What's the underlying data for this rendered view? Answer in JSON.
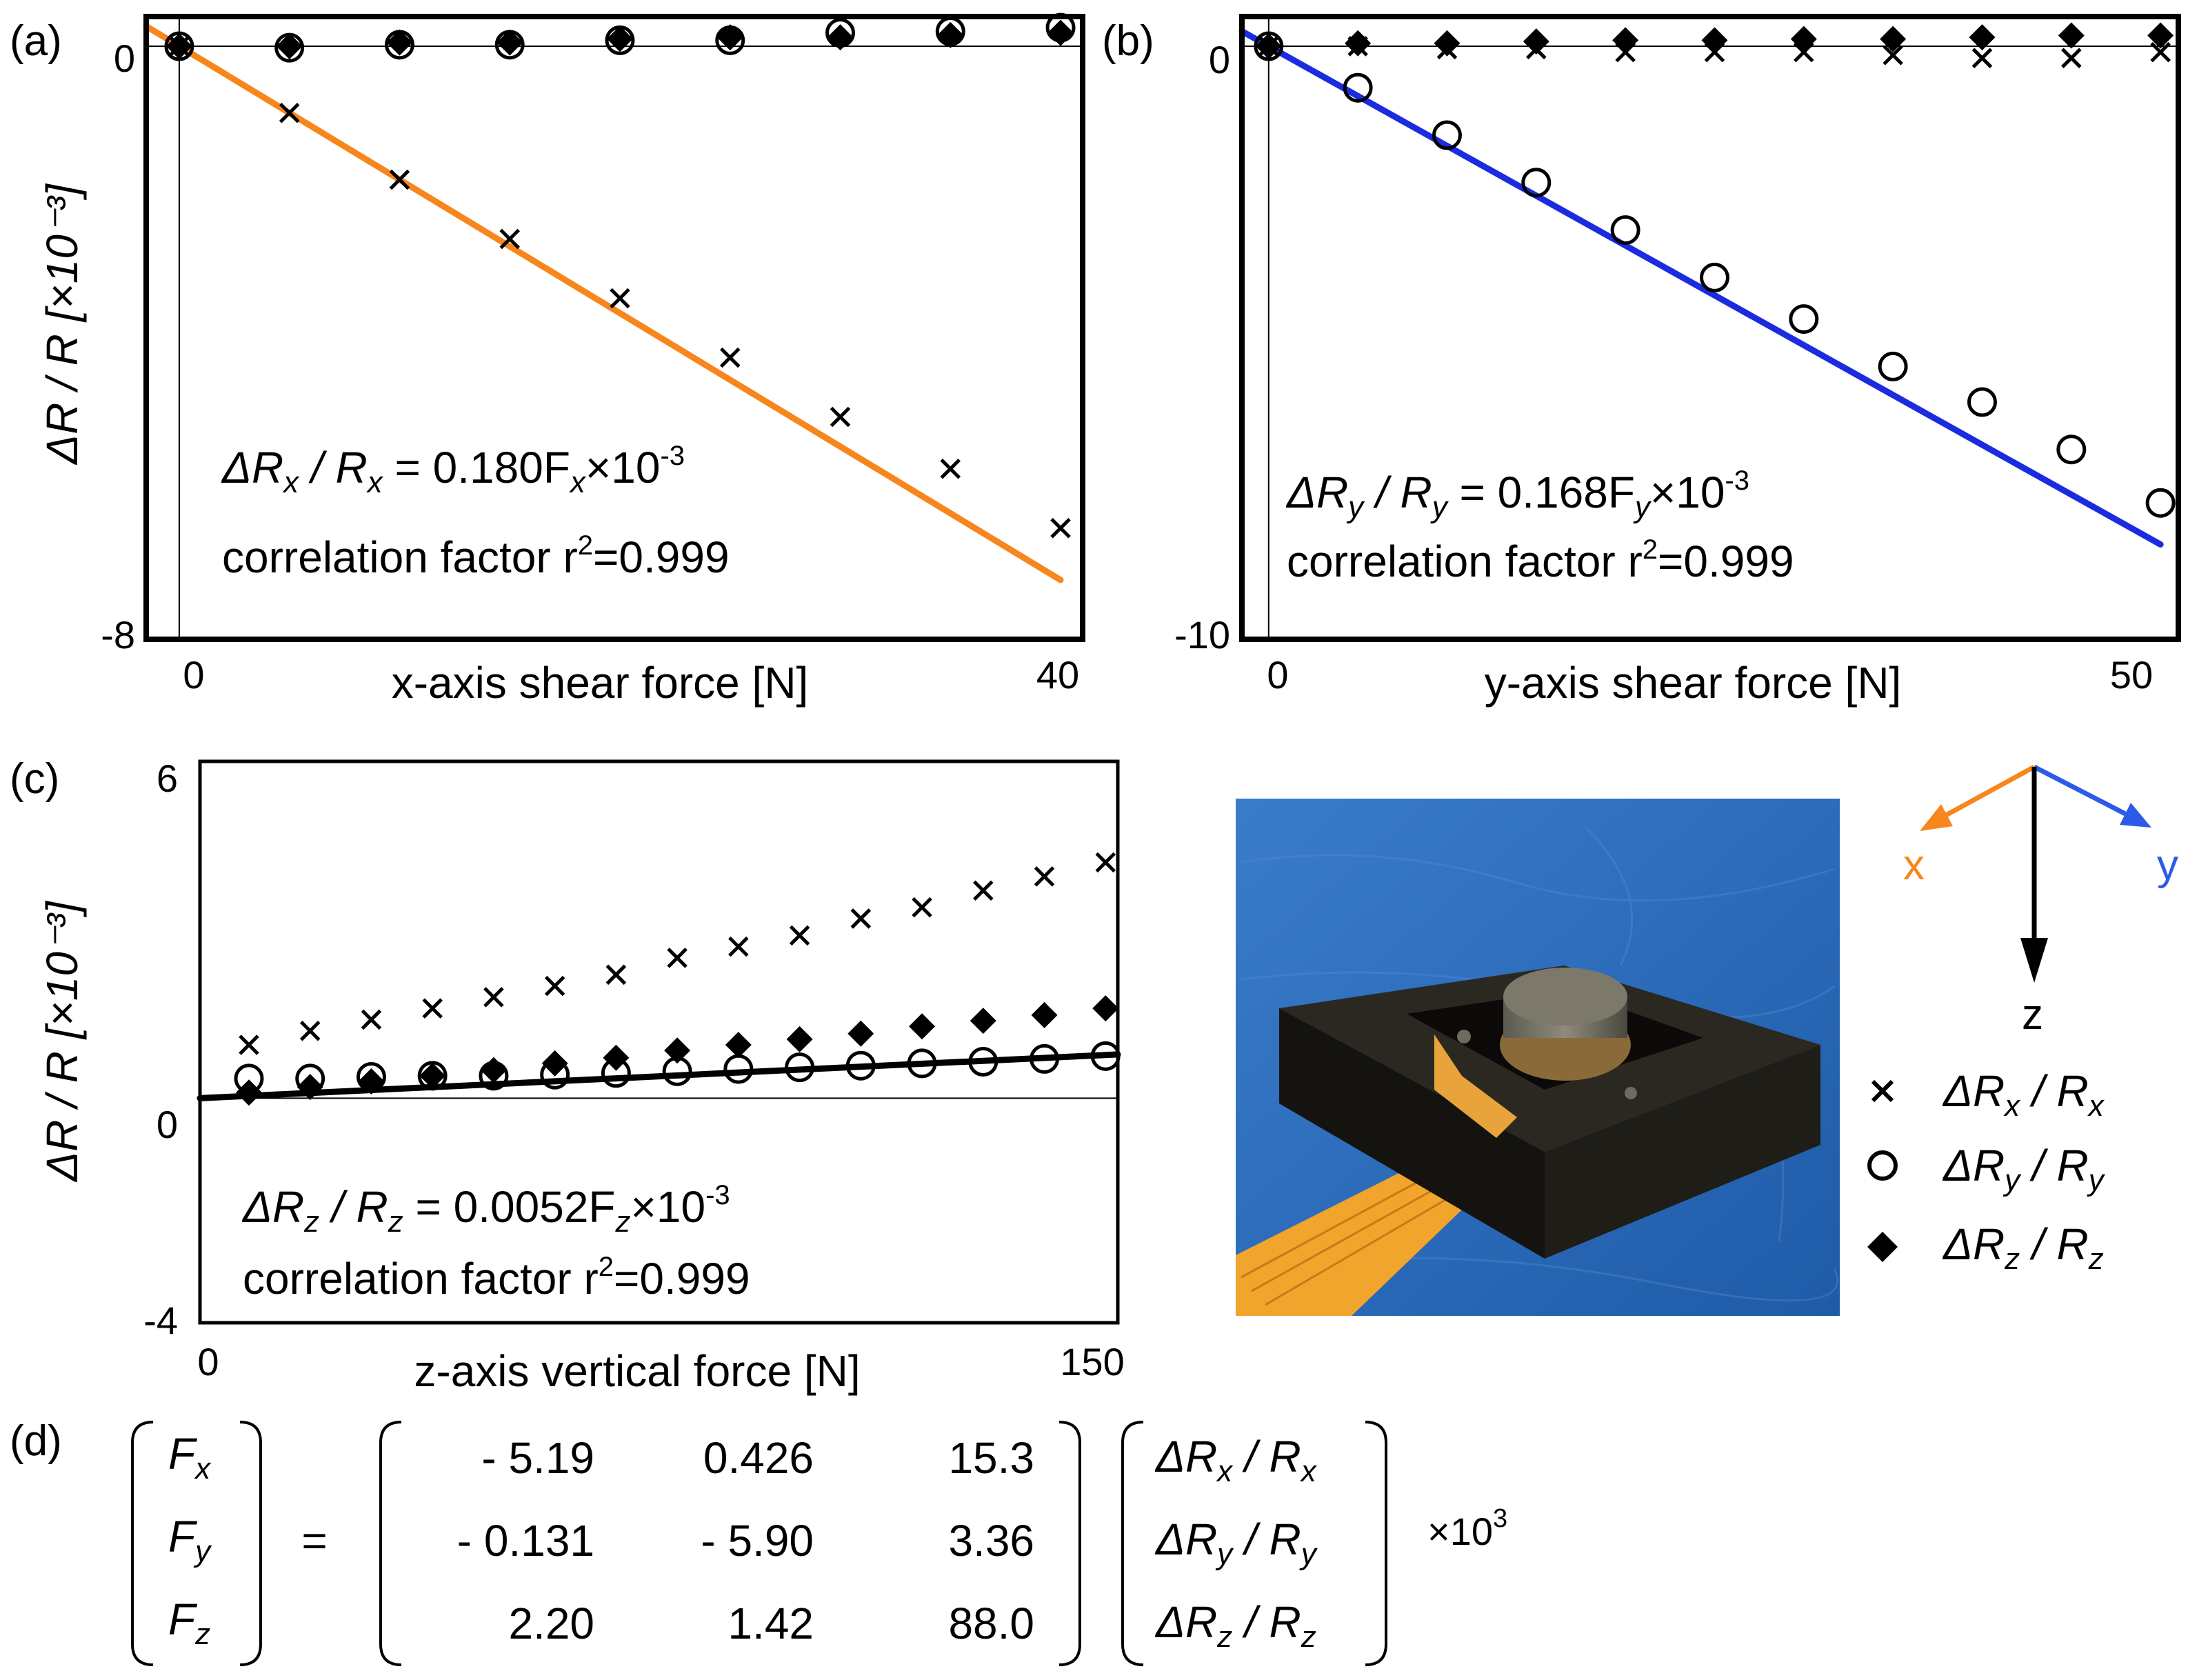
{
  "colors": {
    "fit_x": "#F7861C",
    "fit_y": "#1A2BE0",
    "fit_z": "#000000",
    "axis_x_arrow": "#F7861C",
    "axis_y_arrow": "#2D5BE8",
    "axis_z_arrow": "#000000",
    "photo_bg": "#2E6FC0",
    "sensor_body": "#1F1D18",
    "flex_cable": "#F2A52C",
    "pin": "#6E6A5E"
  },
  "panels": {
    "a_label": "(a)",
    "b_label": "(b)",
    "c_label": "(c)",
    "d_label": "(d)"
  },
  "chart_data": [
    {
      "id": "a",
      "type": "scatter",
      "xlabel": "x-axis shear force [N]",
      "ylabel": "ΔR / R [×10⁻³]",
      "xlim": [
        -1.5,
        41
      ],
      "ylim": [
        -8,
        0.4
      ],
      "xticks": [
        "0",
        "40"
      ],
      "yticks": [
        "0",
        "-8"
      ],
      "fit_line": {
        "slope": -0.18,
        "intercept": 0,
        "x_range": [
          -1.5,
          40
        ],
        "color_key": "fit_x"
      },
      "equation": {
        "lhs_a": "ΔR",
        "lhs_a_sub": "x",
        "lhs_b": " / R",
        "lhs_b_sub": "x",
        "rhs": " = 0.180F",
        "rhs_sub": "x",
        "rhs_tail": "×10",
        "rhs_sup": "-3"
      },
      "correlation": {
        "text": "correlation factor r",
        "sup": "2",
        "tail": "=0.999"
      },
      "series": [
        {
          "name": "ΔRx/Rx",
          "marker": "x",
          "x": [
            0,
            5,
            10,
            15,
            20,
            25,
            30,
            35,
            40
          ],
          "values": [
            0,
            -0.9,
            -1.8,
            -2.6,
            -3.4,
            -4.2,
            -5.0,
            -5.7,
            -6.5
          ]
        },
        {
          "name": "ΔRy/Ry",
          "marker": "o",
          "x": [
            0,
            5,
            10,
            15,
            20,
            25,
            30,
            35,
            40
          ],
          "values": [
            0,
            -0.02,
            0.02,
            0.02,
            0.08,
            0.08,
            0.18,
            0.2,
            0.25
          ]
        },
        {
          "name": "ΔRz/Rz",
          "marker": "diamond",
          "x": [
            0,
            5,
            10,
            15,
            20,
            25,
            30,
            35,
            40
          ],
          "values": [
            0,
            0,
            0.05,
            0.05,
            0.1,
            0.12,
            0.12,
            0.15,
            0.18
          ]
        }
      ]
    },
    {
      "id": "b",
      "type": "scatter",
      "xlabel": "y-axis shear force [N]",
      "ylabel": "",
      "xlim": [
        -1.5,
        51
      ],
      "ylim": [
        -10,
        0.5
      ],
      "xticks": [
        "0",
        "50"
      ],
      "yticks": [
        "0",
        "-10"
      ],
      "fit_line": {
        "slope": -0.168,
        "intercept": 0,
        "x_range": [
          -1.5,
          50
        ],
        "color_key": "fit_y"
      },
      "equation": {
        "lhs_a": "ΔR",
        "lhs_a_sub": "y",
        "lhs_b": " / R",
        "lhs_b_sub": "y",
        "rhs": " = 0.168F",
        "rhs_sub": "y",
        "rhs_tail": "×10",
        "rhs_sup": "-3"
      },
      "correlation": {
        "text": "correlation factor r",
        "sup": "2",
        "tail": "=0.999"
      },
      "series": [
        {
          "name": "ΔRx/Rx",
          "marker": "x",
          "x": [
            0,
            5,
            10,
            15,
            20,
            25,
            30,
            35,
            40,
            45,
            50
          ],
          "values": [
            0,
            0,
            -0.05,
            -0.05,
            -0.1,
            -0.1,
            -0.1,
            -0.15,
            -0.2,
            -0.2,
            -0.1
          ]
        },
        {
          "name": "ΔRy/Ry",
          "marker": "o",
          "x": [
            0,
            5,
            10,
            15,
            20,
            25,
            30,
            35,
            40,
            45,
            50
          ],
          "values": [
            0,
            -0.7,
            -1.5,
            -2.3,
            -3.1,
            -3.9,
            -4.6,
            -5.4,
            -6.0,
            -6.8,
            -7.7
          ]
        },
        {
          "name": "ΔRz/Rz",
          "marker": "diamond",
          "x": [
            0,
            5,
            10,
            15,
            20,
            25,
            30,
            35,
            40,
            45,
            50
          ],
          "values": [
            0,
            0.05,
            0.05,
            0.08,
            0.1,
            0.1,
            0.12,
            0.12,
            0.15,
            0.18,
            0.18
          ]
        }
      ]
    },
    {
      "id": "c",
      "type": "scatter",
      "xlabel": "z-axis vertical force [N]",
      "ylabel": "ΔR / R [×10⁻³]",
      "xlim": [
        0,
        150
      ],
      "ylim": [
        -4,
        6
      ],
      "xticks": [
        "0",
        "150"
      ],
      "yticks": [
        "6",
        "0",
        "-4"
      ],
      "fit_line": {
        "slope": 0.0052,
        "intercept": 0,
        "x_range": [
          0,
          150
        ],
        "color_key": "fit_z"
      },
      "equation": {
        "lhs_a": "ΔR",
        "lhs_a_sub": "z",
        "lhs_b": " / R",
        "lhs_b_sub": "z",
        "rhs": " = 0.0052F",
        "rhs_sub": "z",
        "rhs_tail": "×10",
        "rhs_sup": "-3"
      },
      "correlation": {
        "text": "correlation factor r",
        "sup": "2",
        "tail": "=0.999"
      },
      "series": [
        {
          "name": "ΔRx/Rx",
          "marker": "x",
          "x": [
            8,
            18,
            28,
            38,
            48,
            58,
            68,
            78,
            88,
            98,
            108,
            118,
            128,
            138,
            148
          ],
          "values": [
            0.95,
            1.2,
            1.4,
            1.6,
            1.8,
            2.0,
            2.2,
            2.5,
            2.7,
            2.9,
            3.2,
            3.4,
            3.7,
            3.95,
            4.2
          ]
        },
        {
          "name": "ΔRy/Ry",
          "marker": "o",
          "x": [
            8,
            18,
            28,
            38,
            48,
            58,
            68,
            78,
            88,
            98,
            108,
            118,
            128,
            138,
            148
          ],
          "values": [
            0.35,
            0.35,
            0.38,
            0.4,
            0.4,
            0.42,
            0.45,
            0.48,
            0.52,
            0.55,
            0.58,
            0.62,
            0.65,
            0.7,
            0.75
          ]
        },
        {
          "name": "ΔRz/Rz",
          "marker": "diamond",
          "x": [
            8,
            18,
            28,
            38,
            48,
            58,
            68,
            78,
            88,
            98,
            108,
            118,
            128,
            138,
            148
          ],
          "values": [
            0.1,
            0.2,
            0.3,
            0.4,
            0.5,
            0.62,
            0.72,
            0.85,
            0.95,
            1.05,
            1.15,
            1.28,
            1.38,
            1.48,
            1.6
          ]
        }
      ]
    }
  ],
  "legend": {
    "items": [
      {
        "marker": "x",
        "main": "ΔR",
        "sub1": "x",
        "mid": " / R",
        "sub2": "x"
      },
      {
        "marker": "o",
        "main": "ΔR",
        "sub1": "y",
        "mid": " / R",
        "sub2": "y"
      },
      {
        "marker": "diamond",
        "main": "ΔR",
        "sub1": "z",
        "mid": " / R",
        "sub2": "z"
      }
    ]
  },
  "axes_diagram": {
    "x_label": "x",
    "y_label": "y",
    "z_label": "z"
  },
  "matrix_equation": {
    "lhs": [
      {
        "main": "F",
        "sub": "x"
      },
      {
        "main": "F",
        "sub": "y"
      },
      {
        "main": "F",
        "sub": "z"
      }
    ],
    "equals": "=",
    "matrix": [
      [
        "- 5.19",
        "0.426",
        "15.3"
      ],
      [
        "- 0.131",
        "- 5.90",
        "3.36"
      ],
      [
        "2.20",
        "1.42",
        "88.0"
      ]
    ],
    "rhs": [
      {
        "main": "ΔR",
        "sub1": "x",
        "mid": " / R",
        "sub2": "x"
      },
      {
        "main": "ΔR",
        "sub1": "y",
        "mid": " / R",
        "sub2": "y"
      },
      {
        "main": "ΔR",
        "sub1": "z",
        "mid": " / R",
        "sub2": "z"
      }
    ],
    "scale_base": "×10",
    "scale_exp": "3"
  }
}
